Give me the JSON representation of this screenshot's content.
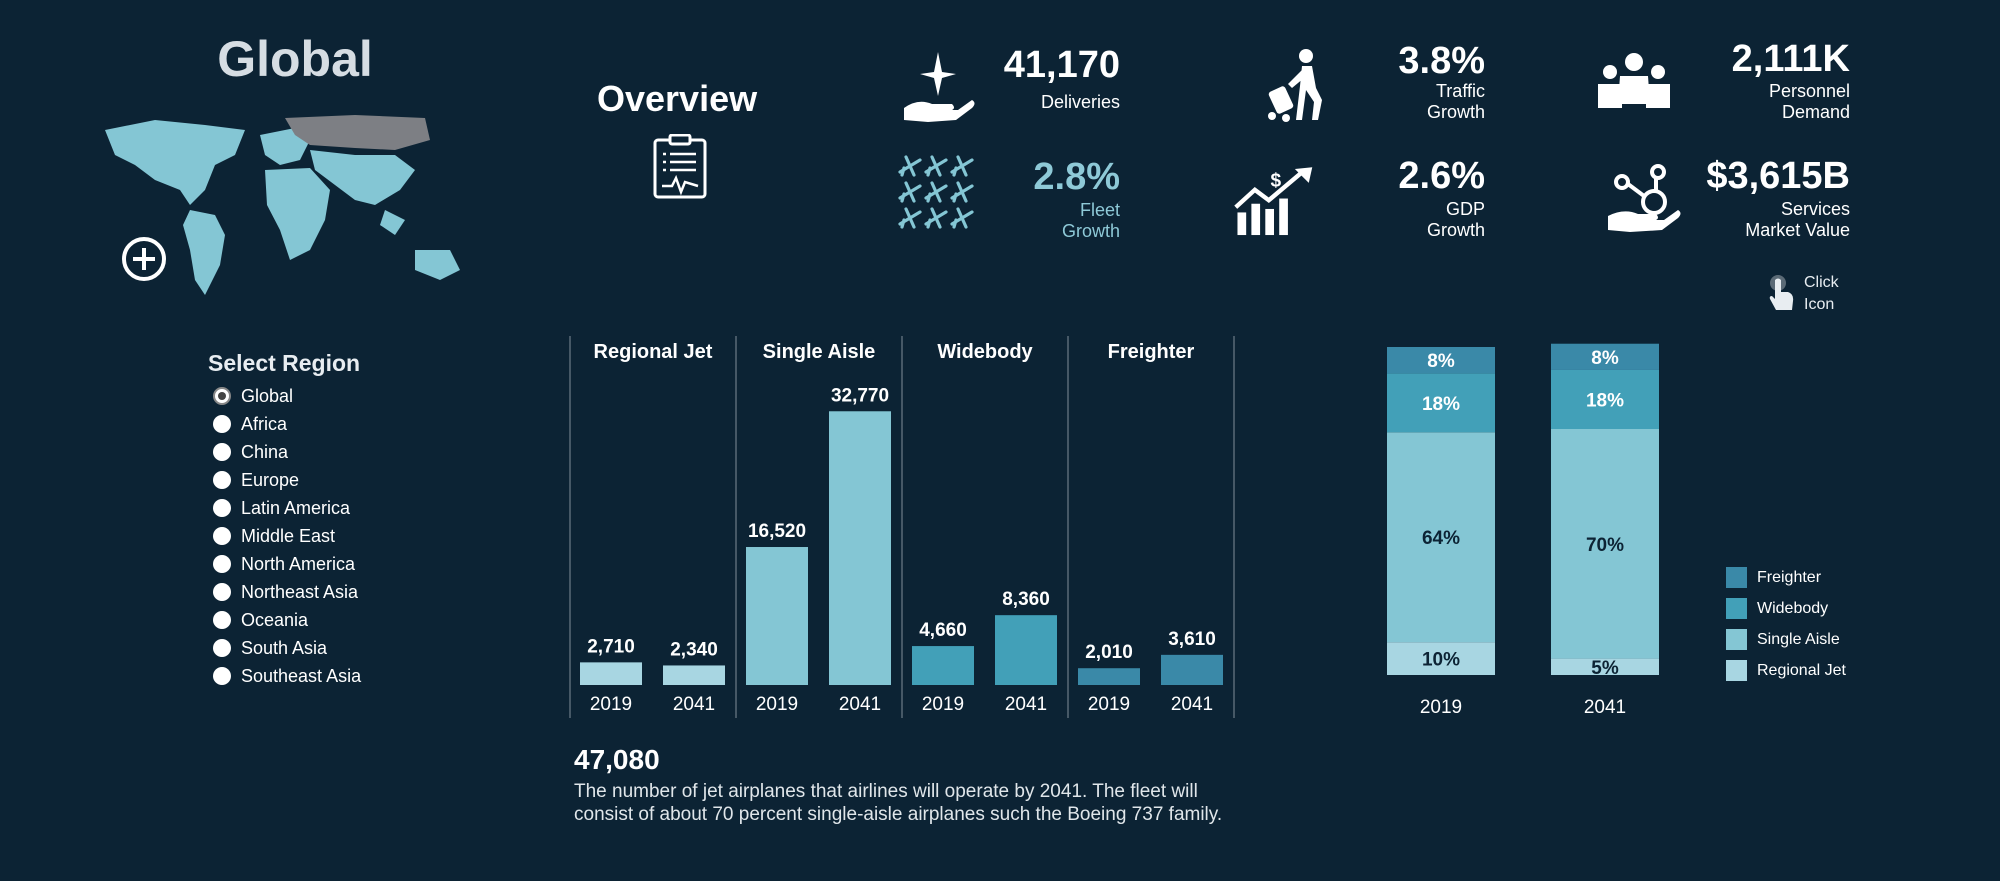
{
  "left_panel": {
    "region_title": "Global",
    "select_title": "Select Region",
    "regions": [
      "Global",
      "Africa",
      "China",
      "Europe",
      "Latin America",
      "Middle East",
      "North America",
      "Northeast Asia",
      "Oceania",
      "South Asia",
      "Southeast Asia"
    ],
    "selected": "Global"
  },
  "overview": {
    "title": "Overview"
  },
  "kpis": {
    "deliveries": {
      "value": "41,170",
      "label1": "Deliveries",
      "label2": "",
      "icon": "delivery-hand-icon"
    },
    "fleet": {
      "value": "2.8%",
      "label1": "Fleet",
      "label2": "Growth",
      "icon": "airplane-grid-icon"
    },
    "traffic": {
      "value": "3.8%",
      "label1": "Traffic",
      "label2": "Growth",
      "icon": "traveler-icon"
    },
    "gdp": {
      "value": "2.6%",
      "label1": "GDP",
      "label2": "Growth",
      "icon": "growth-chart-icon"
    },
    "personnel": {
      "value": "2,111K",
      "label1": "Personnel",
      "label2": "Demand",
      "icon": "people-icon"
    },
    "services": {
      "value": "$3,615B",
      "label1": "Services",
      "label2": "Market Value",
      "icon": "services-gear-icon"
    }
  },
  "click_hint": {
    "line1": "Click",
    "line2": "Icon"
  },
  "colors": {
    "background": "#0c2334",
    "regional_jet": "#a8d6e2",
    "single_aisle": "#84c6d4",
    "widebody": "#42a0b8",
    "freighter": "#3a89a8",
    "kpi_highlight": "#8ec9d7"
  },
  "chart_data": [
    {
      "type": "bar",
      "groups": [
        "Regional Jet",
        "Single Aisle",
        "Widebody",
        "Freighter"
      ],
      "categories": [
        "2019",
        "2041"
      ],
      "series": [
        {
          "name": "Regional Jet",
          "values": [
            2710,
            2340
          ],
          "labels": [
            "2,710",
            "2,340"
          ]
        },
        {
          "name": "Single Aisle",
          "values": [
            16520,
            32770
          ],
          "labels": [
            "16,520",
            "32,770"
          ]
        },
        {
          "name": "Widebody",
          "values": [
            4660,
            8360
          ],
          "labels": [
            "4,660",
            "8,360"
          ]
        },
        {
          "name": "Freighter",
          "values": [
            2010,
            3610
          ],
          "labels": [
            "2,010",
            "3,610"
          ]
        }
      ],
      "ylim": [
        0,
        34000
      ],
      "grid": false
    },
    {
      "type": "bar",
      "stacked": true,
      "percent": true,
      "categories": [
        "2019",
        "2041"
      ],
      "series": [
        {
          "name": "Regional Jet",
          "values": [
            10,
            5
          ],
          "labels": [
            "10%",
            "5%"
          ]
        },
        {
          "name": "Single Aisle",
          "values": [
            64,
            70
          ],
          "labels": [
            "64%",
            "70%"
          ]
        },
        {
          "name": "Widebody",
          "values": [
            18,
            18
          ],
          "labels": [
            "18%",
            "18%"
          ]
        },
        {
          "name": "Freighter",
          "values": [
            8,
            8
          ],
          "labels": [
            "8%",
            "8%"
          ]
        }
      ],
      "legend": [
        "Freighter",
        "Widebody",
        "Single Aisle",
        "Regional Jet"
      ],
      "legend_position": "right"
    }
  ],
  "description": {
    "number": "47,080",
    "text": "The number of jet airplanes that airlines will operate by 2041. The fleet will consist of about 70 percent single-aisle airplanes such the Boeing 737 family."
  }
}
